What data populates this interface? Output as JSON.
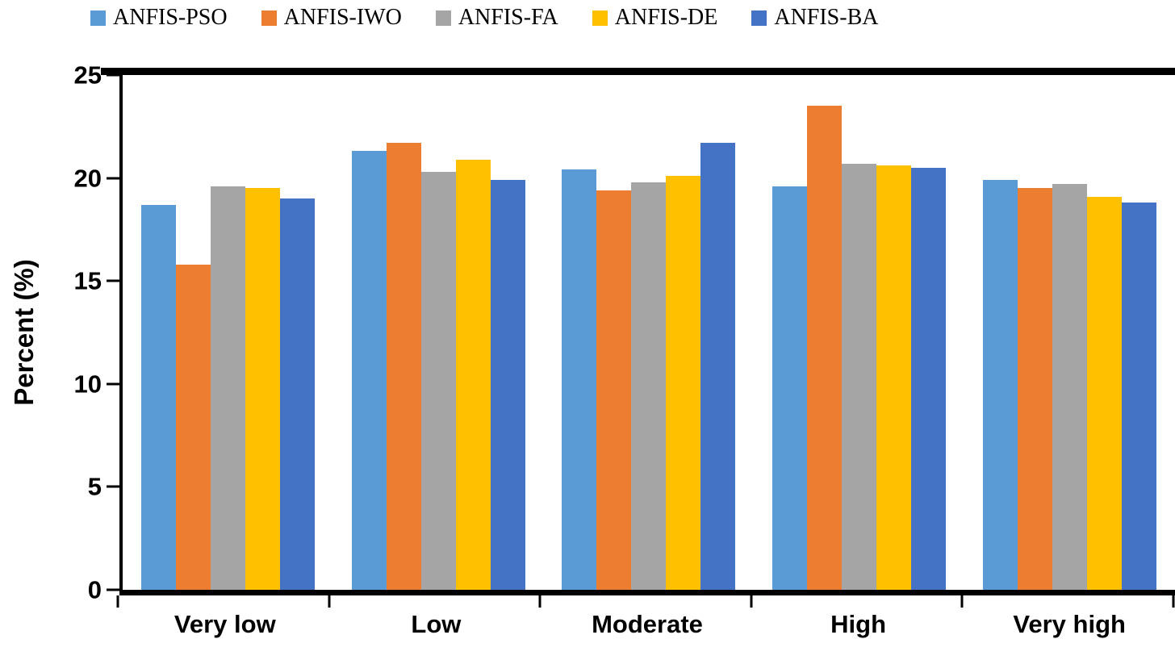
{
  "legend": [
    {
      "label": "ANFIS-PSO",
      "color": "#5B9BD5"
    },
    {
      "label": "ANFIS-IWO",
      "color": "#ED7D31"
    },
    {
      "label": "ANFIS-FA",
      "color": "#A5A5A5"
    },
    {
      "label": "ANFIS-DE",
      "color": "#FFC000"
    },
    {
      "label": "ANFIS-BA",
      "color": "#4472C4"
    }
  ],
  "chart_data": {
    "type": "bar",
    "title": "",
    "xlabel": "",
    "ylabel": "Percent (%)",
    "ylim": [
      0,
      25
    ],
    "yticks": [
      0,
      5,
      10,
      15,
      20,
      25
    ],
    "grid": false,
    "legend_position": "top",
    "categories": [
      "Very low",
      "Low",
      "Moderate",
      "High",
      "Very high"
    ],
    "series": [
      {
        "name": "ANFIS-PSO",
        "color": "#5B9BD5",
        "values": [
          18.7,
          21.3,
          20.4,
          19.6,
          19.9
        ]
      },
      {
        "name": "ANFIS-IWO",
        "color": "#ED7D31",
        "values": [
          15.8,
          21.7,
          19.4,
          23.5,
          19.5
        ]
      },
      {
        "name": "ANFIS-FA",
        "color": "#A5A5A5",
        "values": [
          19.6,
          20.3,
          19.8,
          20.7,
          19.7
        ]
      },
      {
        "name": "ANFIS-DE",
        "color": "#FFC000",
        "values": [
          19.5,
          20.9,
          20.1,
          20.6,
          19.1
        ]
      },
      {
        "name": "ANFIS-BA",
        "color": "#4472C4",
        "values": [
          19.0,
          19.9,
          21.7,
          20.5,
          18.8
        ]
      }
    ]
  }
}
